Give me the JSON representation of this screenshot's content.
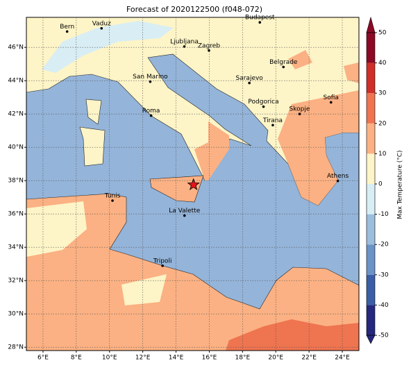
{
  "title": "Forecast of 2020122500 (f048-072)",
  "map": {
    "xlim": [
      5,
      25
    ],
    "ylim": [
      27.8,
      47.8
    ],
    "xticks": [
      {
        "value": 6,
        "label": "6°E"
      },
      {
        "value": 8,
        "label": "8°E"
      },
      {
        "value": 10,
        "label": "10°E"
      },
      {
        "value": 12,
        "label": "12°E"
      },
      {
        "value": 14,
        "label": "14°E"
      },
      {
        "value": 16,
        "label": "16°E"
      },
      {
        "value": 18,
        "label": "18°E"
      },
      {
        "value": 20,
        "label": "20°E"
      },
      {
        "value": 22,
        "label": "22°E"
      },
      {
        "value": 24,
        "label": "24°E"
      }
    ],
    "yticks": [
      {
        "value": 28,
        "label": "28°N"
      },
      {
        "value": 30,
        "label": "30°N"
      },
      {
        "value": 32,
        "label": "32°N"
      },
      {
        "value": 34,
        "label": "34°N"
      },
      {
        "value": 36,
        "label": "36°N"
      },
      {
        "value": 38,
        "label": "38°N"
      },
      {
        "value": 40,
        "label": "40°N"
      },
      {
        "value": 42,
        "label": "42°N"
      },
      {
        "value": 44,
        "label": "44°N"
      },
      {
        "value": 46,
        "label": "46°N"
      }
    ],
    "cities": [
      {
        "name": "Bern",
        "lon": 7.45,
        "lat": 46.95
      },
      {
        "name": "Vaduz",
        "lon": 9.52,
        "lat": 47.14
      },
      {
        "name": "Budapest",
        "lon": 19.04,
        "lat": 47.5
      },
      {
        "name": "Ljubljana",
        "lon": 14.5,
        "lat": 46.05
      },
      {
        "name": "Zagreb",
        "lon": 15.98,
        "lat": 45.81
      },
      {
        "name": "Belgrade",
        "lon": 20.46,
        "lat": 44.82
      },
      {
        "name": "San Marino",
        "lon": 12.45,
        "lat": 43.94
      },
      {
        "name": "Sarajevo",
        "lon": 18.41,
        "lat": 43.86
      },
      {
        "name": "Podgorica",
        "lon": 19.26,
        "lat": 42.44
      },
      {
        "name": "Skopje",
        "lon": 21.43,
        "lat": 42.0
      },
      {
        "name": "Sofia",
        "lon": 23.32,
        "lat": 42.7
      },
      {
        "name": "Roma",
        "lon": 12.5,
        "lat": 41.9
      },
      {
        "name": "Tirana",
        "lon": 19.82,
        "lat": 41.33
      },
      {
        "name": "Athens",
        "lon": 23.73,
        "lat": 37.98
      },
      {
        "name": "Tunis",
        "lon": 10.18,
        "lat": 36.8
      },
      {
        "name": "La Valette",
        "lon": 14.51,
        "lat": 35.9
      },
      {
        "name": "Tripoli",
        "lon": 13.19,
        "lat": 32.89
      }
    ],
    "marker": {
      "lon": 15.05,
      "lat": 37.75
    }
  },
  "colorbar": {
    "label": "Max Temperature (°C)",
    "lim": [
      -50,
      50
    ],
    "ticks": [
      -50,
      -40,
      -30,
      -20,
      -10,
      0,
      10,
      20,
      30,
      40,
      50
    ],
    "colors": [
      "#26287d",
      "#3a5fa6",
      "#6a93c6",
      "#9cbedd",
      "#d8eef4",
      "#fdf4c7",
      "#fbb183",
      "#ef7450",
      "#cf2f28",
      "#8c0a26"
    ]
  }
}
